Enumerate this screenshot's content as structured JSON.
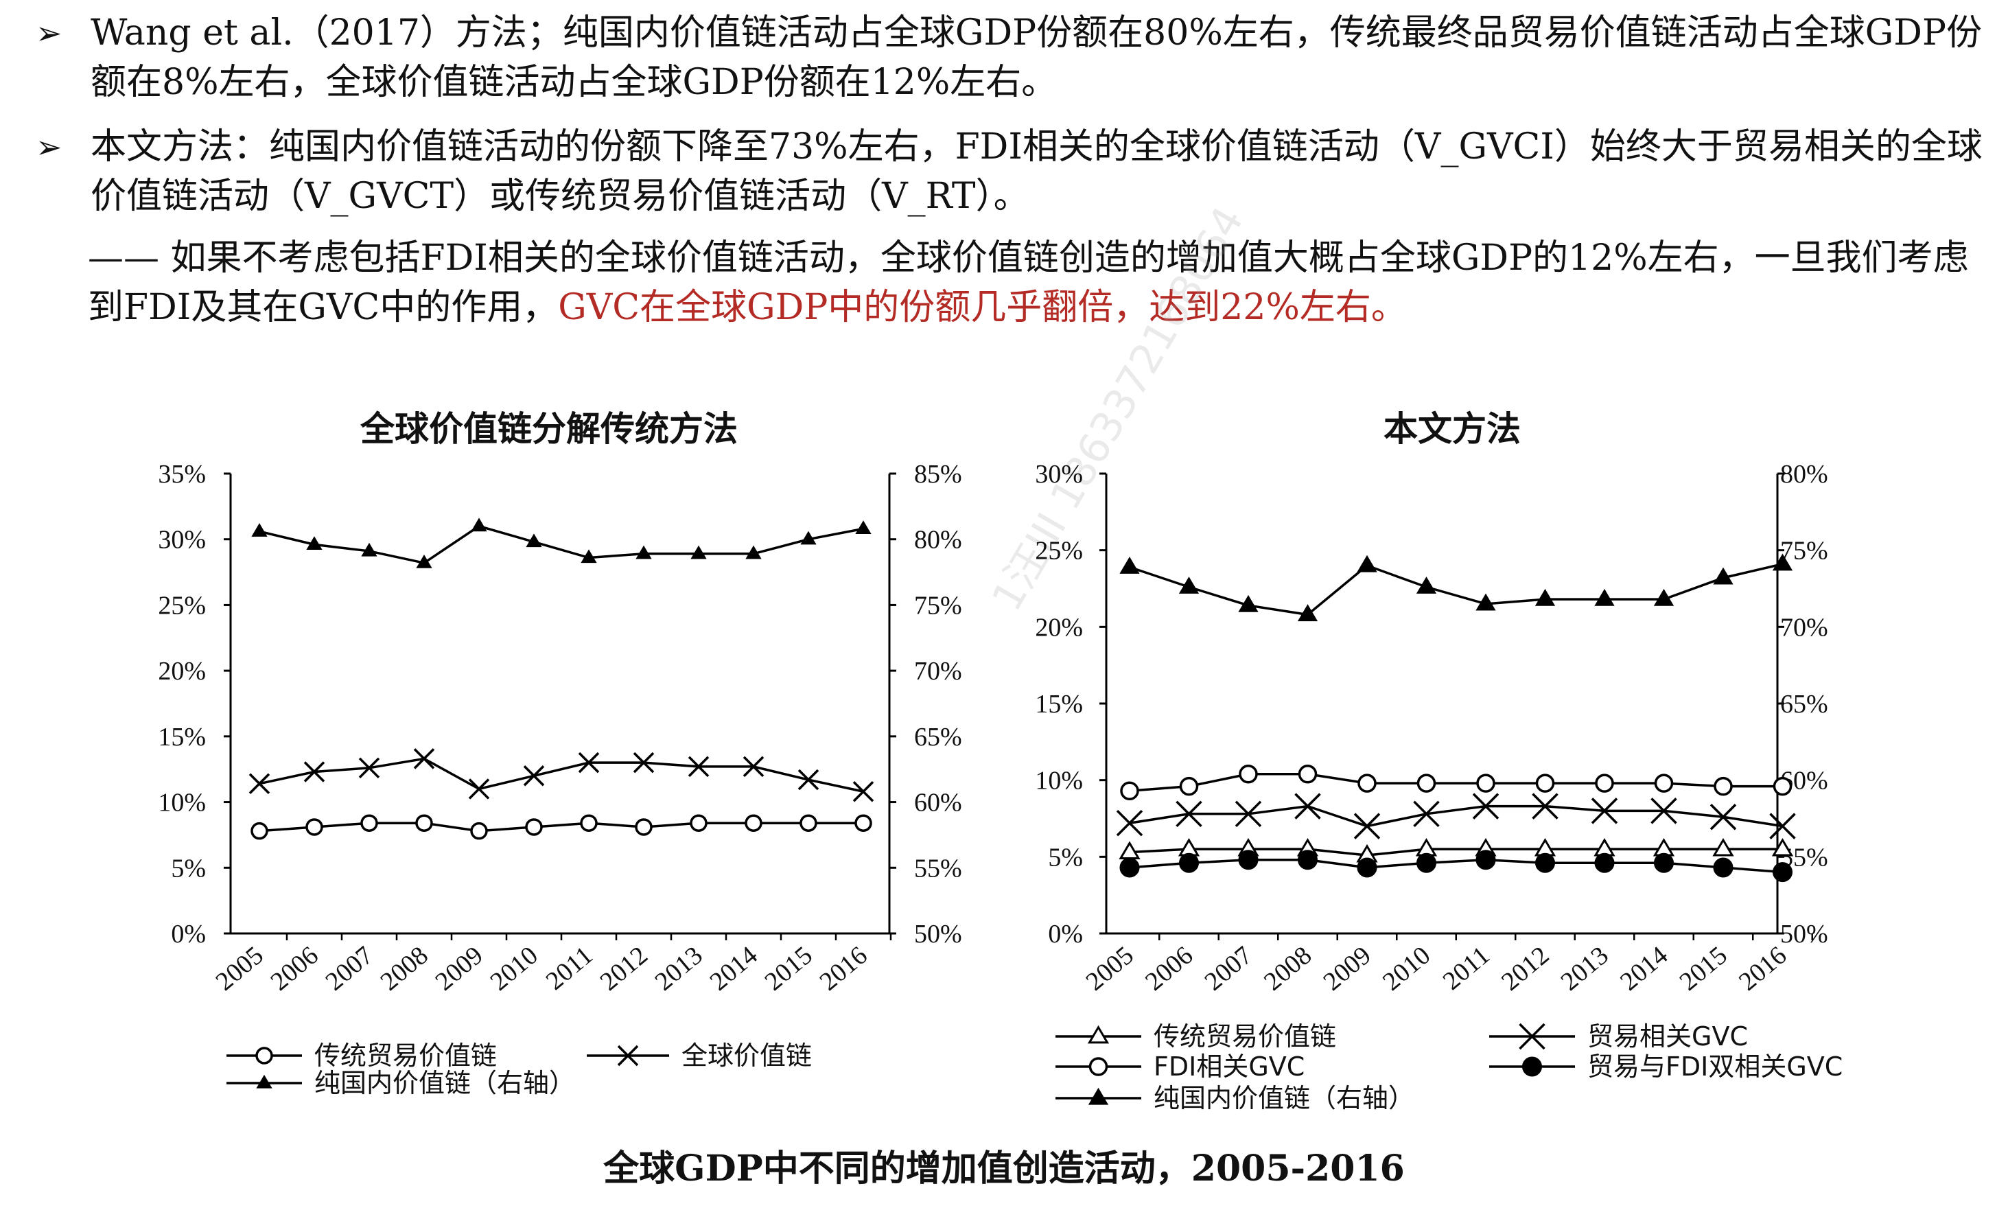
{
  "bullets": [
    {
      "arrow": "➢",
      "text": "Wang et al.（2017）方法；纯国内价值链活动占全球GDP份额在80%左右，传统最终品贸易价值链活动占全球GDP份额在8%左右，全球价值链活动占全球GDP份额在12%左右。"
    },
    {
      "arrow": "➢",
      "text": "本文方法：纯国内价值链活动的份额下降至73%左右，FDI相关的全球价值链活动（V_GVCI）始终大于贸易相关的全球价值链活动（V_GVCT）或传统贸易价值链活动（V_RT）。"
    }
  ],
  "note": {
    "prefix": "—— 如果不考虑包括FDI相关的全球价值链活动，全球价值链创造的增加值大概占全球GDP的12%左右，一旦我们考虑到FDI及其在GVC中的作用，",
    "highlight": "GVC在全球GDP中的份额几乎翻倍，达到22%左右。"
  },
  "watermark": "1汪III 18633721680​64",
  "caption": "全球GDP中不同的增加值创造活动，2005-2016",
  "colors": {
    "line": "#000000",
    "highlight": "#b42a24"
  },
  "chart_data": [
    {
      "type": "line",
      "title": "全球价值链分解传统方法",
      "x": [
        "2005",
        "2006",
        "2007",
        "2008",
        "2009",
        "2010",
        "2011",
        "2012",
        "2013",
        "2014",
        "2015",
        "2016"
      ],
      "y_left": {
        "min": 0,
        "max": 35,
        "ticks": [
          "0%",
          "5%",
          "10%",
          "15%",
          "20%",
          "25%",
          "30%",
          "35%"
        ]
      },
      "y_right": {
        "min": 50,
        "max": 85,
        "ticks": [
          "50%",
          "55%",
          "60%",
          "65%",
          "70%",
          "75%",
          "80%",
          "85%"
        ]
      },
      "series": [
        {
          "name": "传统贸易价值链",
          "axis": "left",
          "marker": "circle-open",
          "values": [
            7.8,
            8.1,
            8.4,
            8.4,
            7.8,
            8.1,
            8.4,
            8.1,
            8.4,
            8.4,
            8.4,
            8.4
          ]
        },
        {
          "name": "全球价值链",
          "axis": "left",
          "marker": "x",
          "values": [
            11.4,
            12.3,
            12.6,
            13.3,
            11.0,
            12.0,
            13.0,
            13.0,
            12.7,
            12.7,
            11.7,
            10.8
          ]
        },
        {
          "name": "纯国内价值链（右轴）",
          "axis": "right",
          "marker": "triangle-small",
          "values": [
            80.6,
            79.6,
            79.1,
            78.2,
            81.0,
            79.8,
            78.6,
            78.9,
            78.9,
            78.9,
            80.0,
            80.8
          ]
        }
      ],
      "legend": [
        {
          "label": "传统贸易价值链",
          "marker": "circle-open"
        },
        {
          "label": "全球价值链",
          "marker": "x"
        },
        {
          "label": "纯国内价值链（右轴）",
          "marker": "triangle-small"
        }
      ]
    },
    {
      "type": "line",
      "title": "本文方法",
      "x": [
        "2005",
        "2006",
        "2007",
        "2008",
        "2009",
        "2010",
        "2011",
        "2012",
        "2013",
        "2014",
        "2015",
        "2016"
      ],
      "y_left": {
        "min": 0,
        "max": 30,
        "ticks": [
          "0%",
          "5%",
          "10%",
          "15%",
          "20%",
          "25%",
          "30%"
        ]
      },
      "y_right": {
        "min": 50,
        "max": 80,
        "ticks": [
          "50%",
          "55%",
          "60%",
          "65%",
          "70%",
          "75%",
          "80%"
        ]
      },
      "series": [
        {
          "name": "传统贸易价值链",
          "axis": "left",
          "marker": "triangle-open",
          "values": [
            5.3,
            5.5,
            5.5,
            5.5,
            5.1,
            5.5,
            5.5,
            5.5,
            5.5,
            5.5,
            5.5,
            5.5
          ]
        },
        {
          "name": "FDI相关GVC",
          "axis": "left",
          "marker": "circle-open",
          "values": [
            9.3,
            9.6,
            10.4,
            10.4,
            9.8,
            9.8,
            9.8,
            9.8,
            9.8,
            9.8,
            9.6,
            9.6
          ]
        },
        {
          "name": "纯国内价值链（右轴）",
          "axis": "right",
          "marker": "triangle-filled",
          "values": [
            73.9,
            72.6,
            71.4,
            70.8,
            74.0,
            72.6,
            71.5,
            71.8,
            71.8,
            71.8,
            73.2,
            74.1
          ]
        },
        {
          "name": "贸易相关GVC",
          "axis": "left",
          "marker": "x",
          "values": [
            7.2,
            7.8,
            7.8,
            8.3,
            7.0,
            7.8,
            8.3,
            8.3,
            8.0,
            8.0,
            7.6,
            7.0
          ]
        },
        {
          "name": "贸易与FDI双相关GVC",
          "axis": "left",
          "marker": "circle-filled",
          "values": [
            4.3,
            4.6,
            4.8,
            4.8,
            4.3,
            4.6,
            4.8,
            4.6,
            4.6,
            4.6,
            4.3,
            4.0
          ]
        }
      ],
      "legend": [
        {
          "label": "传统贸易价值链",
          "marker": "triangle-open"
        },
        {
          "label": "贸易相关GVC",
          "marker": "x"
        },
        {
          "label": "FDI相关GVC",
          "marker": "circle-open"
        },
        {
          "label": "贸易与FDI双相关GVC",
          "marker": "circle-filled"
        },
        {
          "label": "纯国内价值链（右轴）",
          "marker": "triangle-filled"
        }
      ]
    }
  ]
}
